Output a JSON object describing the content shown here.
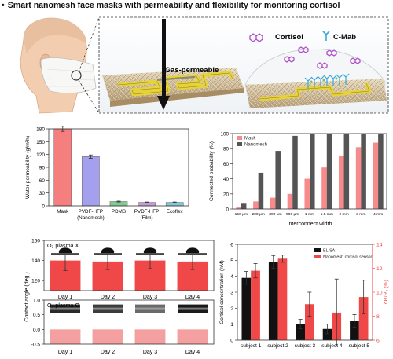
{
  "header": {
    "bullet": "•",
    "title": "Smart nanomesh face masks with permeability and flexibility for monitoring cortisol"
  },
  "schematic": {
    "gas_label": "Gas-permeable",
    "cortisol_label": "Cortisol",
    "cmab_label": "C-Mab",
    "colors": {
      "electrode": "#e6d23a",
      "mesh": "#cdb890",
      "cortisol": "#b04fc8",
      "antibody": "#3aa6d8"
    }
  },
  "colors": {
    "red": "#f04848",
    "red_light": "#f78a8a",
    "blue": "#a4a0ee",
    "green": "#78c888",
    "purple": "#c89ad8",
    "cyan": "#7cc8dc",
    "dark": "#4a4a4a",
    "pink": "#f0b0b0"
  },
  "chart_data": [
    {
      "id": "water",
      "type": "bar",
      "ylabel": "Water permeability (g/m²h)",
      "categories": [
        "Mask",
        "PVDF-HFP\n(Nanomesh)",
        "PDMS",
        "PVDF-HFP\n(Film)",
        "Ecoflex"
      ],
      "values": [
        180,
        115,
        10,
        8,
        8
      ],
      "errors": [
        6,
        4,
        1,
        1,
        1
      ],
      "bar_colors": [
        "#f57f7f",
        "#a4a0ee",
        "#80cc90",
        "#c89ad8",
        "#80c8dc"
      ],
      "ylim": [
        0,
        180
      ],
      "yticks": [
        0,
        30,
        60,
        90,
        120,
        150,
        180
      ]
    },
    {
      "id": "connected",
      "type": "bar",
      "ylabel": "Connected probability (%)",
      "xlabel": "Interconnect width",
      "categories": [
        "150 μm",
        "200 μm",
        "300 μm",
        "500 μm",
        "1 mm",
        "1.5 mm",
        "2 mm",
        "3 mm",
        "4 mm"
      ],
      "series": [
        {
          "name": "Mask",
          "color": "#f78a8a",
          "values": [
            2,
            10,
            15,
            20,
            40,
            55,
            70,
            82,
            88
          ]
        },
        {
          "name": "Nanomesh",
          "color": "#555555",
          "values": [
            7,
            48,
            77,
            97,
            100,
            100,
            100,
            100,
            100
          ]
        }
      ],
      "ylim": [
        0,
        100
      ],
      "yticks": [
        0,
        20,
        40,
        60,
        80,
        100
      ]
    },
    {
      "id": "contact_x",
      "type": "bar",
      "annotation": "O₂ plasma X",
      "categories": [
        "Day 1",
        "Day 2",
        "Day 3",
        "Day 4"
      ],
      "values": [
        140,
        139,
        140,
        139
      ],
      "errors": [
        10,
        8,
        8,
        8
      ],
      "bar_color": "#f04848",
      "ylim": [
        110,
        160
      ],
      "yticks": [
        120,
        140,
        160
      ]
    },
    {
      "id": "contact_o",
      "type": "bar",
      "annotation": "O₂ plasma O",
      "categories": [
        "Day 1",
        "Day 2",
        "Day 3",
        "Day 4"
      ],
      "values": [
        0,
        0,
        0,
        0
      ],
      "bar_color": "#f08080",
      "ylim": [
        -0.5,
        1.0
      ],
      "yticks": [
        -0.5,
        0.0,
        0.5,
        1.0
      ]
    },
    {
      "id": "shared_axis",
      "ylabel": "Contact angle (deg.)"
    },
    {
      "id": "cortisol",
      "type": "bar",
      "ylabel": "Cortisol concentration (nM)",
      "ylabel_right": "ΔR/R₀ (%)",
      "categories": [
        "subject 1",
        "subject 2",
        "subject 3",
        "subject 4",
        "subject 5"
      ],
      "series": [
        {
          "name": "ELISA",
          "color": "#111111",
          "axis": "left",
          "values": [
            3.9,
            4.9,
            1.0,
            0.7,
            1.2
          ],
          "errors": [
            0.4,
            0.4,
            0.3,
            0.3,
            0.4
          ]
        },
        {
          "name": "Nanomesh cortisol sensor",
          "color": "#f04848",
          "axis": "right",
          "values": [
            11.8,
            12.8,
            9.0,
            8.3,
            9.6
          ],
          "errors": [
            0.6,
            0.3,
            1.0,
            2.8,
            1.4
          ]
        }
      ],
      "ylim": [
        0,
        6
      ],
      "yticks": [
        0,
        1,
        2,
        3,
        4,
        5,
        6
      ],
      "ylim_right": [
        6,
        14
      ],
      "yticks_right": [
        6,
        8,
        10,
        12,
        14
      ]
    }
  ]
}
